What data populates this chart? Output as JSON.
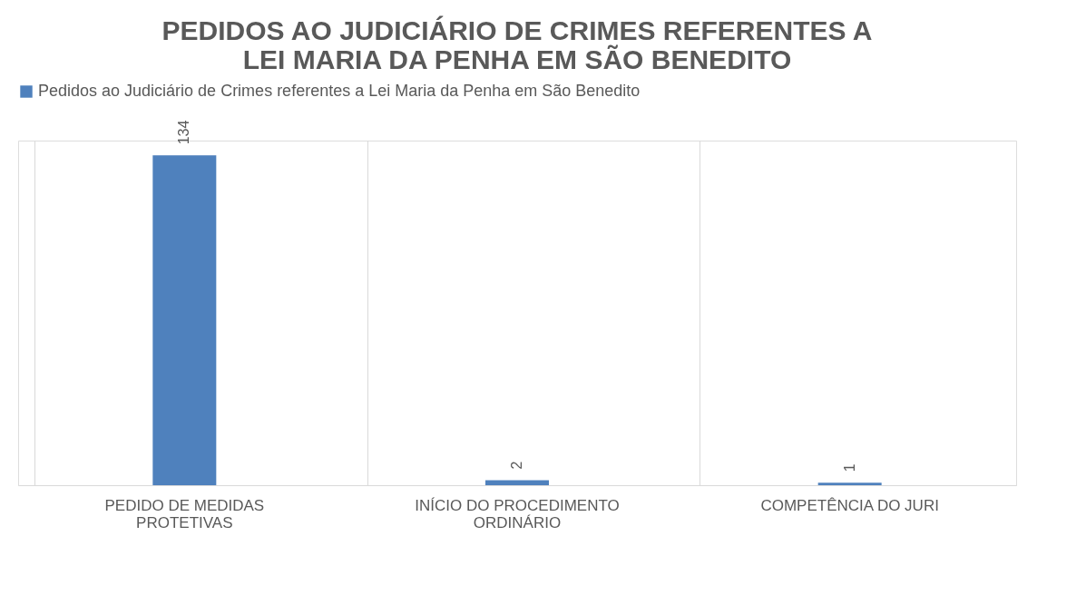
{
  "chart_data": {
    "type": "bar",
    "title": "PEDIDOS AO JUDICIÁRIO DE CRIMES REFERENTES A LEI MARIA DA PENHA EM SÃO BENEDITO",
    "categories": [
      "PEDIDO DE MEDIDAS PROTETIVAS",
      "INÍCIO DO PROCEDIMENTO ORDINÁRIO",
      "COMPETÊNCIA DO JURI"
    ],
    "series": [
      {
        "name": "Pedidos ao Judiciário de Crimes referentes a Lei Maria da Penha em São Benedito",
        "color": "#4f81bd",
        "values": [
          134,
          2,
          1
        ]
      }
    ],
    "data_labels": true,
    "grid": "x",
    "legend": "top"
  }
}
